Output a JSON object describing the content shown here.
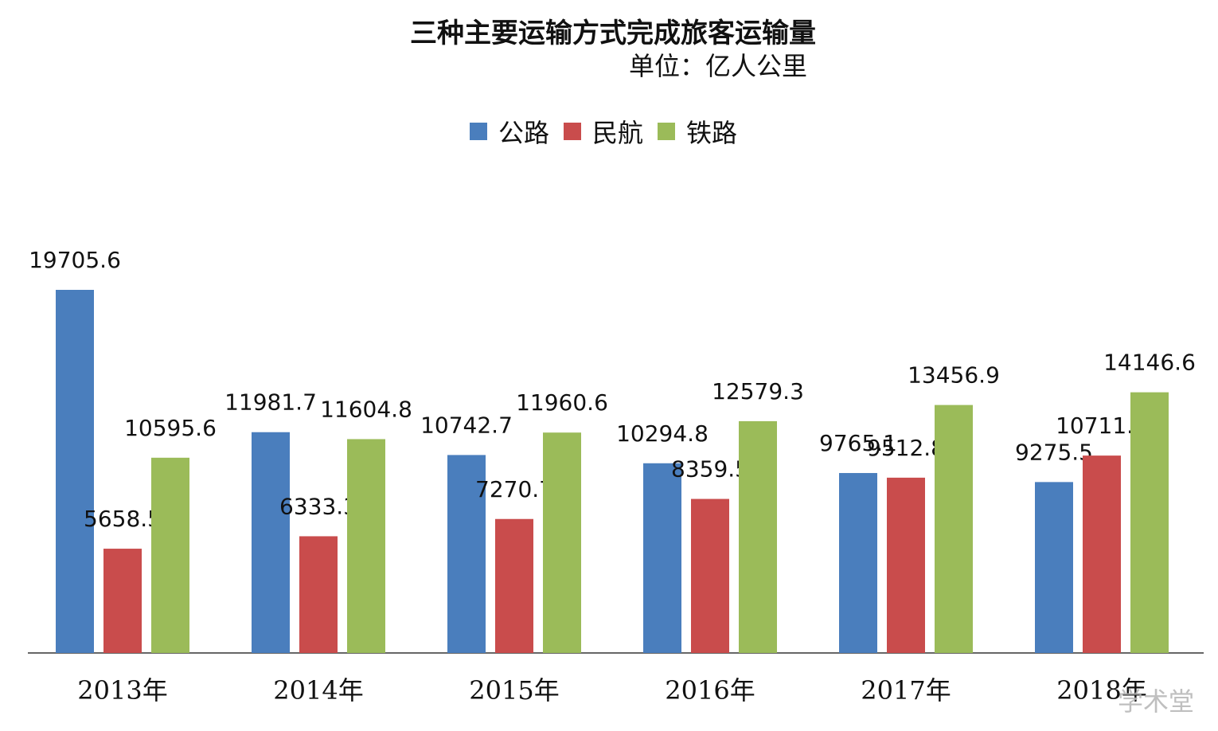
{
  "chart_data": {
    "type": "bar",
    "title": "三种主要运输方式完成旅客运输量",
    "subtitle": "单位：亿人公里",
    "categories": [
      "2013年",
      "2014年",
      "2015年",
      "2016年",
      "2017年",
      "2018年"
    ],
    "series": [
      {
        "name": "公路",
        "color": "#4a7ebd",
        "values": [
          19705.6,
          11981.7,
          10742.7,
          10294.8,
          9765.1,
          9275.5
        ],
        "labels": [
          "19705.6",
          "11981.7",
          "10742.7",
          "10294.8",
          "9765.1",
          "9275.5"
        ]
      },
      {
        "name": "民航",
        "color": "#c94c4c",
        "values": [
          5658.5,
          6333.3,
          7270.7,
          8359.5,
          9512.8,
          10711.6
        ],
        "labels": [
          "5658.5",
          "6333.3",
          "7270.7",
          "8359.5",
          "9512.8",
          "10711.6"
        ]
      },
      {
        "name": "铁路",
        "color": "#9bbb59",
        "values": [
          10595.6,
          11604.8,
          11960.6,
          12579.3,
          13456.9,
          14146.6
        ],
        "labels": [
          "10595.6",
          "11604.8",
          "11960.6",
          "12579.3",
          "13456.9",
          "14146.6"
        ]
      }
    ],
    "ylim": [
      0,
      19705.6
    ],
    "grid": false,
    "legend_position": "top"
  },
  "watermark": "学术堂"
}
